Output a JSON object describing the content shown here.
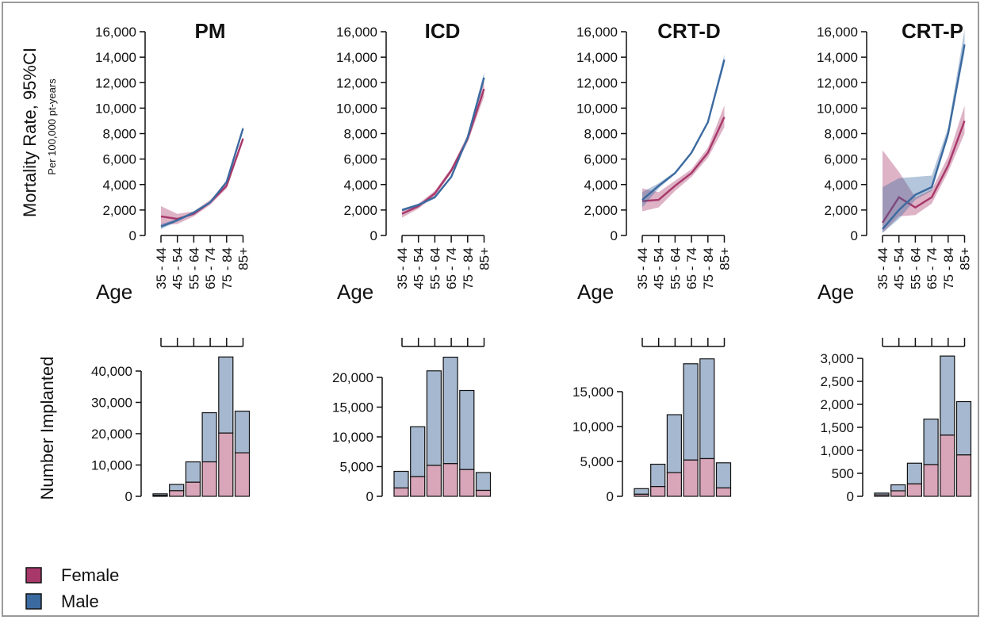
{
  "y_label_top": "Mortality Rate, 95%CI",
  "y_label_top_sub": "Per 100,000 pt-years",
  "y_label_bottom": "Number Implanted",
  "age_label": "Age",
  "age_groups": [
    "35 - 44",
    "45 - 54",
    "55 - 64",
    "65 - 74",
    "75 - 84",
    "85+"
  ],
  "colors": {
    "female": "#a8386a",
    "male": "#3b6aa0",
    "female_bar": "#d9a5b8",
    "male_bar": "#a6b8cf"
  },
  "legend": [
    {
      "label": "Female",
      "key": "female"
    },
    {
      "label": "Male",
      "key": "male"
    }
  ],
  "chart_data": [
    {
      "type": "line",
      "panel": "PM-mortality",
      "title": "PM",
      "ylim": [
        0,
        16000
      ],
      "yticks": [
        0,
        2000,
        4000,
        6000,
        8000,
        10000,
        12000,
        14000,
        16000
      ],
      "ytick_labels": [
        "0",
        "2,000",
        "4,000",
        "6,000",
        "8,000",
        "10,000",
        "12,000",
        "14,000",
        "16,000"
      ],
      "series": [
        {
          "name": "Female",
          "values": [
            1500,
            1300,
            1700,
            2600,
            3900,
            7600
          ],
          "lower": [
            800,
            900,
            1500,
            2400,
            3700,
            7400
          ],
          "upper": [
            2300,
            1700,
            1900,
            2800,
            4100,
            7800
          ]
        },
        {
          "name": "Male",
          "values": [
            700,
            1200,
            1800,
            2600,
            4200,
            8400
          ],
          "lower": [
            500,
            1100,
            1700,
            2500,
            4100,
            8200
          ],
          "upper": [
            900,
            1300,
            1900,
            2700,
            4300,
            8600
          ]
        }
      ]
    },
    {
      "type": "line",
      "panel": "ICD-mortality",
      "title": "ICD",
      "ylim": [
        0,
        16000
      ],
      "yticks": [
        0,
        2000,
        4000,
        6000,
        8000,
        10000,
        12000,
        14000,
        16000
      ],
      "ytick_labels": [
        "0",
        "2,000",
        "4,000",
        "6,000",
        "8,000",
        "10,000",
        "12,000",
        "14,000",
        "16,000"
      ],
      "series": [
        {
          "name": "Female",
          "values": [
            1700,
            2300,
            3300,
            5100,
            7600,
            11500
          ],
          "lower": [
            1400,
            2100,
            3100,
            4900,
            7300,
            10900
          ],
          "upper": [
            2000,
            2500,
            3500,
            5300,
            7900,
            12100
          ]
        },
        {
          "name": "Male",
          "values": [
            2000,
            2400,
            3000,
            4600,
            7700,
            12400
          ],
          "lower": [
            1900,
            2300,
            2900,
            4500,
            7500,
            12000
          ],
          "upper": [
            2100,
            2500,
            3100,
            4700,
            7900,
            12800
          ]
        }
      ]
    },
    {
      "type": "line",
      "panel": "CRT-D-mortality",
      "title": "CRT-D",
      "ylim": [
        0,
        16000
      ],
      "yticks": [
        0,
        2000,
        4000,
        6000,
        8000,
        10000,
        12000,
        14000,
        16000
      ],
      "ytick_labels": [
        "0",
        "2,000",
        "4,000",
        "6,000",
        "8,000",
        "10,000",
        "12,000",
        "14,000",
        "16,000"
      ],
      "series": [
        {
          "name": "Female",
          "values": [
            2700,
            2800,
            3900,
            4900,
            6500,
            9300
          ],
          "lower": [
            1900,
            2200,
            3500,
            4600,
            6100,
            8500
          ],
          "upper": [
            3700,
            3400,
            4300,
            5200,
            6900,
            10200
          ]
        },
        {
          "name": "Male",
          "values": [
            2800,
            3900,
            4900,
            6500,
            8900,
            13800
          ],
          "lower": [
            2200,
            3700,
            4800,
            6400,
            8800,
            13400
          ],
          "upper": [
            3400,
            4100,
            5000,
            6600,
            9000,
            14200
          ]
        }
      ]
    },
    {
      "type": "line",
      "panel": "CRT-P-mortality",
      "title": "CRT-P",
      "ylim": [
        0,
        16000
      ],
      "yticks": [
        0,
        2000,
        4000,
        6000,
        8000,
        10000,
        12000,
        14000,
        16000
      ],
      "ytick_labels": [
        "0",
        "2,000",
        "4,000",
        "6,000",
        "8,000",
        "10,000",
        "12,000",
        "14,000",
        "16,000"
      ],
      "series": [
        {
          "name": "Female",
          "values": [
            1000,
            3000,
            2200,
            3000,
            5500,
            9000
          ],
          "lower": [
            200,
            1500,
            1600,
            2500,
            5000,
            8000
          ],
          "upper": [
            6700,
            5000,
            3000,
            3600,
            6200,
            10200
          ]
        },
        {
          "name": "Male",
          "values": [
            500,
            2000,
            3200,
            3800,
            8000,
            15000
          ],
          "lower": [
            200,
            1300,
            2800,
            3500,
            7700,
            14400
          ],
          "upper": [
            3800,
            4500,
            4600,
            4700,
            8500,
            16200
          ]
        }
      ]
    },
    {
      "type": "bar",
      "panel": "PM-implanted",
      "stacked": true,
      "ylim": [
        0,
        45000
      ],
      "yticks": [
        0,
        10000,
        20000,
        30000,
        40000
      ],
      "ytick_labels": [
        "0",
        "10,000",
        "20,000",
        "30,000",
        "40,000"
      ],
      "series": [
        {
          "name": "Female",
          "values": [
            300,
            1800,
            4500,
            11000,
            20200,
            13900
          ]
        },
        {
          "name": "Male",
          "values": [
            500,
            2000,
            6500,
            15700,
            24300,
            13300
          ]
        }
      ]
    },
    {
      "type": "bar",
      "panel": "ICD-implanted",
      "stacked": true,
      "ylim": [
        0,
        24000
      ],
      "yticks": [
        0,
        5000,
        10000,
        15000,
        20000
      ],
      "ytick_labels": [
        "0",
        "5,000",
        "10,000",
        "15,000",
        "20,000"
      ],
      "series": [
        {
          "name": "Female",
          "values": [
            1400,
            3300,
            5200,
            5500,
            4500,
            1000
          ]
        },
        {
          "name": "Male",
          "values": [
            2800,
            8400,
            15900,
            17900,
            13300,
            3000
          ]
        }
      ]
    },
    {
      "type": "bar",
      "panel": "CRT-D-implanted",
      "stacked": true,
      "ylim": [
        0,
        20000
      ],
      "yticks": [
        0,
        5000,
        10000,
        15000
      ],
      "ytick_labels": [
        "0",
        "5,000",
        "10,000",
        "15,000"
      ],
      "series": [
        {
          "name": "Female",
          "values": [
            300,
            1400,
            3400,
            5200,
            5400,
            1200
          ]
        },
        {
          "name": "Male",
          "values": [
            800,
            3200,
            8300,
            13800,
            14300,
            3600
          ]
        }
      ]
    },
    {
      "type": "bar",
      "panel": "CRT-P-implanted",
      "stacked": true,
      "ylim": [
        0,
        3000
      ],
      "yticks": [
        0,
        500,
        1000,
        1500,
        2000,
        2500,
        3000
      ],
      "ytick_labels": [
        "0",
        "500",
        "1,000",
        "1,500",
        "2,000",
        "2,500",
        "3,000"
      ],
      "series": [
        {
          "name": "Female",
          "values": [
            30,
            120,
            270,
            690,
            1330,
            900
          ]
        },
        {
          "name": "Male",
          "values": [
            40,
            130,
            450,
            990,
            1720,
            1160
          ]
        }
      ]
    }
  ]
}
